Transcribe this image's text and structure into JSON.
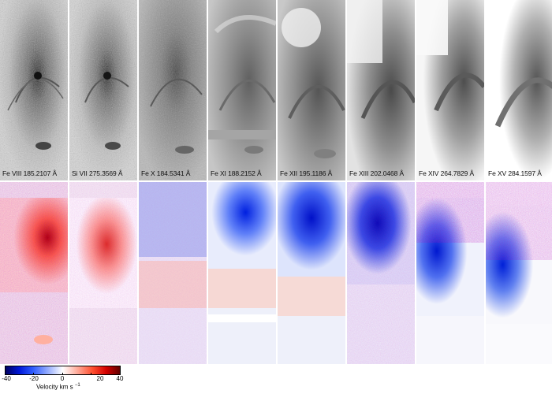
{
  "panels": [
    {
      "label": "Fe VIII 185.2107 Å"
    },
    {
      "label": "Si VII 275.3569 Å"
    },
    {
      "label": "Fe X 184.5341 Å"
    },
    {
      "label": "Fe XI 188.2152 Å"
    },
    {
      "label": "Fe XII 195.1186 Å"
    },
    {
      "label": "Fe XIII 202.0468 Å"
    },
    {
      "label": "Fe XIV 264.7829 Å"
    },
    {
      "label": "Fe XV 284.1597 Å"
    }
  ],
  "colorbar": {
    "ticks": [
      "-40",
      "-20",
      "0",
      "20",
      "40"
    ],
    "label_text": "Velocity km s",
    "label_sup": "−1"
  },
  "colors": {
    "blueshift": "#0018d8",
    "redshift": "#d40000",
    "neutral": "#ffffff"
  }
}
